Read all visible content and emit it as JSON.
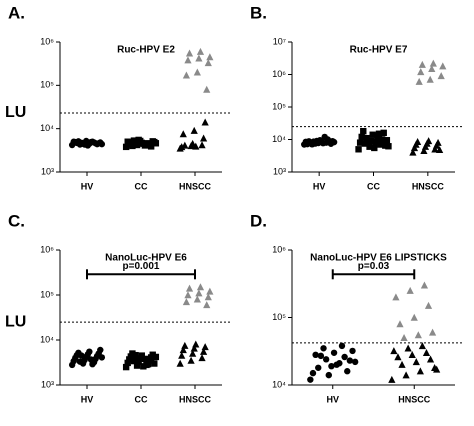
{
  "chart_data": [
    {
      "type": "strip",
      "panel": "A.",
      "title": "Ruc-HPV E2",
      "categories": [
        "HV",
        "CC",
        "HNSCC"
      ],
      "markers": [
        "circle",
        "square",
        "triangle"
      ],
      "values": [
        [
          4200,
          4500,
          4800,
          5000,
          4300,
          4600,
          4900,
          5200,
          4400,
          4700,
          4100,
          4600,
          5100,
          4500,
          4800,
          4300,
          4900,
          4400,
          4700,
          5000
        ],
        [
          3800,
          4200,
          4600,
          5000,
          5500,
          4400,
          4800,
          5200,
          3900,
          4300,
          4700,
          5100,
          4000,
          4500,
          4900,
          5300,
          4100,
          4600,
          5000,
          4400
        ],
        [
          3500,
          4000,
          4200,
          3800,
          4500,
          6000,
          7500,
          9000,
          14000,
          4100,
          3900,
          80000,
          170000,
          200000,
          330000,
          380000,
          420000,
          450000,
          550000,
          600000
        ]
      ],
      "ylim": [
        1000,
        1000000
      ],
      "log_scale": true,
      "yticks": [
        {
          "value": 1000,
          "label": "10³"
        },
        {
          "value": 10000,
          "label": "10⁴"
        },
        {
          "value": 100000,
          "label": "10⁵"
        },
        {
          "value": 1000000,
          "label": "10⁶"
        }
      ],
      "cutoff": 23000,
      "cutoff_label": "LU"
    },
    {
      "type": "strip",
      "panel": "B.",
      "title": "Ruc-HPV E7",
      "categories": [
        "HV",
        "CC",
        "HNSCC"
      ],
      "markers": [
        "circle",
        "square",
        "triangle"
      ],
      "values": [
        [
          7000,
          7500,
          8000,
          8500,
          9000,
          10000,
          7200,
          7800,
          8200,
          8800,
          9500,
          7400,
          7900,
          8400,
          8900,
          7100,
          7700,
          8300,
          8600,
          12000
        ],
        [
          5000,
          6000,
          7000,
          8000,
          9000,
          10000,
          12000,
          14000,
          16000,
          18000,
          5500,
          6500,
          7500,
          8500,
          9500,
          11000,
          13000,
          6200,
          8800,
          15000
        ],
        [
          4000,
          4500,
          5000,
          5500,
          6000,
          6500,
          7000,
          7500,
          8000,
          8500,
          9000,
          4800,
          600000,
          700000,
          900000,
          1200000,
          1500000,
          1800000,
          2000000,
          2200000
        ]
      ],
      "ylim": [
        1000,
        10000000
      ],
      "log_scale": true,
      "yticks": [
        {
          "value": 1000,
          "label": "10³"
        },
        {
          "value": 10000,
          "label": "10⁴"
        },
        {
          "value": 100000,
          "label": "10⁵"
        },
        {
          "value": 1000000,
          "label": "10⁶"
        },
        {
          "value": 10000000,
          "label": "10⁷"
        }
      ],
      "cutoff": 25000
    },
    {
      "type": "strip",
      "panel": "C.",
      "title": "NanoLuc-HPV E6",
      "categories": [
        "HV",
        "CC",
        "HNSCC"
      ],
      "markers": [
        "circle",
        "square",
        "triangle"
      ],
      "values": [
        [
          2800,
          3000,
          3200,
          3400,
          3600,
          3800,
          4000,
          4200,
          4400,
          4600,
          4800,
          5000,
          5200,
          5500,
          6000,
          3300,
          3700,
          4100,
          4500,
          2900
        ],
        [
          2500,
          2700,
          2900,
          3100,
          3300,
          3500,
          3700,
          3900,
          4100,
          4300,
          4500,
          4700,
          5000,
          2600,
          3000,
          3400,
          3800,
          4200,
          4600,
          2800
        ],
        [
          3000,
          3500,
          4000,
          4500,
          5000,
          5500,
          6000,
          6500,
          7000,
          7500,
          8000,
          60000,
          70000,
          80000,
          90000,
          100000,
          110000,
          120000,
          140000,
          150000
        ]
      ],
      "ylim": [
        1000,
        1000000
      ],
      "log_scale": true,
      "yticks": [
        {
          "value": 1000,
          "label": "10³"
        },
        {
          "value": 10000,
          "label": "10⁴"
        },
        {
          "value": 100000,
          "label": "10⁵"
        },
        {
          "value": 1000000,
          "label": "10⁶"
        }
      ],
      "cutoff": 25000,
      "cutoff_label": "LU",
      "bracket": {
        "from": 0,
        "to": 2,
        "label": "p=0.001"
      }
    },
    {
      "type": "strip",
      "panel": "D.",
      "title": "NanoLuc-HPV E6 LIPSTICKS",
      "categories": [
        "HV",
        "HNSCC"
      ],
      "markers": [
        "circle",
        "triangle"
      ],
      "values": [
        [
          12000,
          14000,
          16000,
          18000,
          20000,
          22000,
          24000,
          26000,
          28000,
          30000,
          32000,
          35000,
          38000,
          15000,
          19000,
          23000,
          27000,
          21000
        ],
        [
          12000,
          14000,
          16000,
          18000,
          20000,
          22000,
          24000,
          26000,
          28000,
          30000,
          32000,
          35000,
          38000,
          17000,
          50000,
          55000,
          60000,
          80000,
          100000,
          150000,
          200000,
          250000,
          300000
        ]
      ],
      "ylim": [
        10000,
        1000000
      ],
      "log_scale": true,
      "yticks": [
        {
          "value": 10000,
          "label": "10⁴"
        },
        {
          "value": 100000,
          "label": "10⁵"
        },
        {
          "value": 1000000,
          "label": "10⁶"
        }
      ],
      "cutoff": 42000,
      "bracket": {
        "from": 0,
        "to": 1,
        "label": "p=0.03"
      }
    }
  ]
}
